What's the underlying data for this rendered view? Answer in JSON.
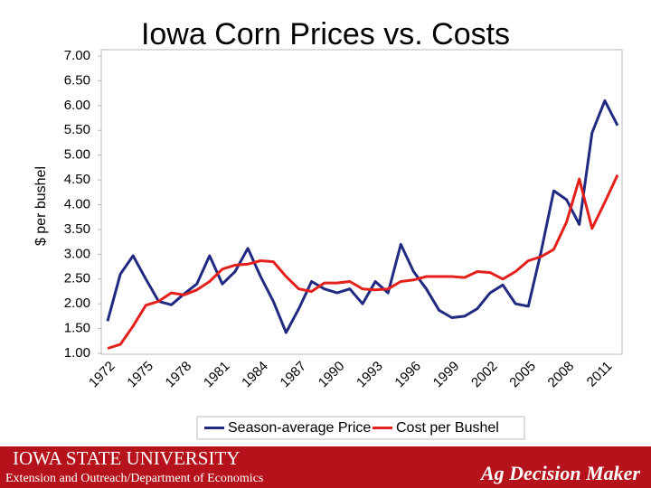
{
  "chart_data": {
    "type": "line",
    "title": "Iowa Corn Prices vs. Costs",
    "y_label": "$ per bushel",
    "categories": [
      "1972",
      null,
      null,
      "1975",
      null,
      null,
      "1978",
      null,
      null,
      "1981",
      null,
      null,
      "1984",
      null,
      null,
      "1987",
      null,
      null,
      "1990",
      null,
      null,
      "1993",
      null,
      null,
      "1996",
      null,
      null,
      "1999",
      null,
      null,
      "2002",
      null,
      null,
      "2005",
      null,
      null,
      "2008",
      null,
      null,
      "2011",
      null
    ],
    "series": [
      {
        "name": "Season-average Price",
        "color": "#1f2a80",
        "values": [
          1.65,
          2.6,
          2.97,
          2.5,
          2.05,
          1.98,
          2.2,
          2.4,
          2.97,
          2.4,
          2.65,
          3.12,
          2.55,
          2.05,
          1.42,
          1.9,
          2.45,
          2.3,
          2.22,
          2.3,
          2.0,
          2.45,
          2.22,
          3.2,
          2.65,
          2.3,
          1.87,
          1.72,
          1.75,
          1.9,
          2.22,
          2.38,
          2.0,
          1.95,
          3.05,
          4.28,
          4.1,
          3.6,
          5.45,
          6.1,
          5.6
        ]
      },
      {
        "name": "Cost per Bushel",
        "color": "#e3201b",
        "values": [
          1.1,
          1.18,
          1.55,
          1.97,
          2.05,
          2.22,
          2.18,
          2.28,
          2.45,
          2.7,
          2.78,
          2.8,
          2.87,
          2.85,
          2.55,
          2.3,
          2.25,
          2.42,
          2.42,
          2.45,
          2.3,
          2.28,
          2.3,
          2.45,
          2.48,
          2.55,
          2.55,
          2.55,
          2.53,
          2.65,
          2.63,
          2.5,
          2.65,
          2.87,
          2.95,
          3.1,
          3.65,
          4.52,
          3.52,
          4.05,
          4.6
        ]
      }
    ],
    "ylim": [
      1,
      7
    ],
    "yticks": [
      {
        "value": 1,
        "label": "1.00"
      },
      {
        "value": 1.5,
        "label": "1.50"
      },
      {
        "value": 2,
        "label": "2.00"
      },
      {
        "value": 2.5,
        "label": "2.50"
      },
      {
        "value": 3,
        "label": "3.00"
      },
      {
        "value": 3.5,
        "label": "3.50"
      },
      {
        "value": 4,
        "label": "4.00"
      },
      {
        "value": 4.5,
        "label": "4.50"
      },
      {
        "value": 5,
        "label": "5.00"
      },
      {
        "value": 5.5,
        "label": "5.50"
      },
      {
        "value": 6,
        "label": "6.00"
      },
      {
        "value": 6.5,
        "label": "6.50"
      },
      {
        "value": 7,
        "label": "7.00"
      }
    ],
    "grid": false,
    "legend": "bottom"
  },
  "footer": {
    "university": "Iowa State University",
    "department": "Extension and Outreach/Department of Economics",
    "program": "Ag Decision Maker"
  }
}
